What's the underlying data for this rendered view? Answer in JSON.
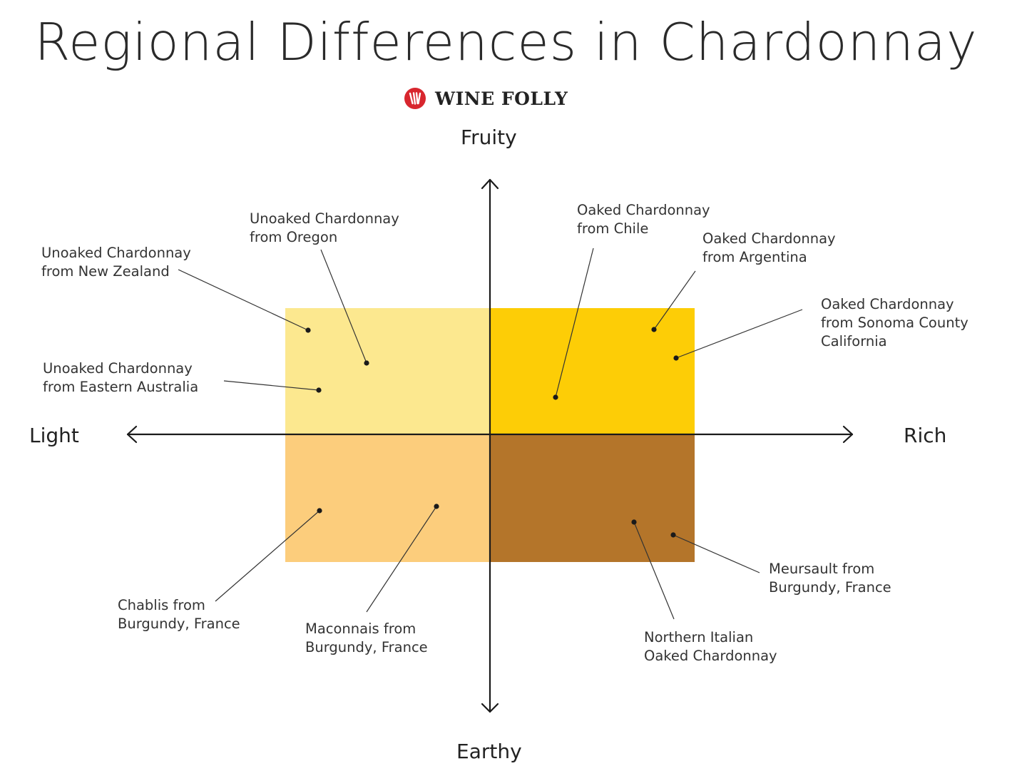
{
  "title": "Regional Differences in Chardonnay",
  "brand": {
    "name": "WINE FOLLY",
    "icon": "wine-folly-logo-icon",
    "icon_color": "#d8262e"
  },
  "axes": {
    "top": "Fruity",
    "bottom": "Earthy",
    "left": "Light",
    "right": "Rich"
  },
  "quadrant_colors": {
    "light_fruity": "#fce88f",
    "rich_fruity": "#fdcd06",
    "light_earthy": "#fccd7c",
    "rich_earthy": "#b4752a"
  },
  "wines": [
    {
      "line1": "Unoaked Chardonnay",
      "line2": "from New Zealand",
      "line3": ""
    },
    {
      "line1": "Unoaked Chardonnay",
      "line2": "from Oregon",
      "line3": ""
    },
    {
      "line1": "Unoaked Chardonnay",
      "line2": "from Eastern Australia",
      "line3": ""
    },
    {
      "line1": "Oaked Chardonnay",
      "line2": "from Chile",
      "line3": ""
    },
    {
      "line1": "Oaked Chardonnay",
      "line2": "from Argentina",
      "line3": ""
    },
    {
      "line1": "Oaked Chardonnay",
      "line2": "from Sonoma County",
      "line3": "California"
    },
    {
      "line1": "Chablis from",
      "line2": "Burgundy, France",
      "line3": ""
    },
    {
      "line1": "Maconnais from",
      "line2": "Burgundy, France",
      "line3": ""
    },
    {
      "line1": "Northern Italian",
      "line2": "Oaked Chardonnay",
      "line3": ""
    },
    {
      "line1": "Meursault from",
      "line2": "Burgundy, France",
      "line3": ""
    }
  ]
}
